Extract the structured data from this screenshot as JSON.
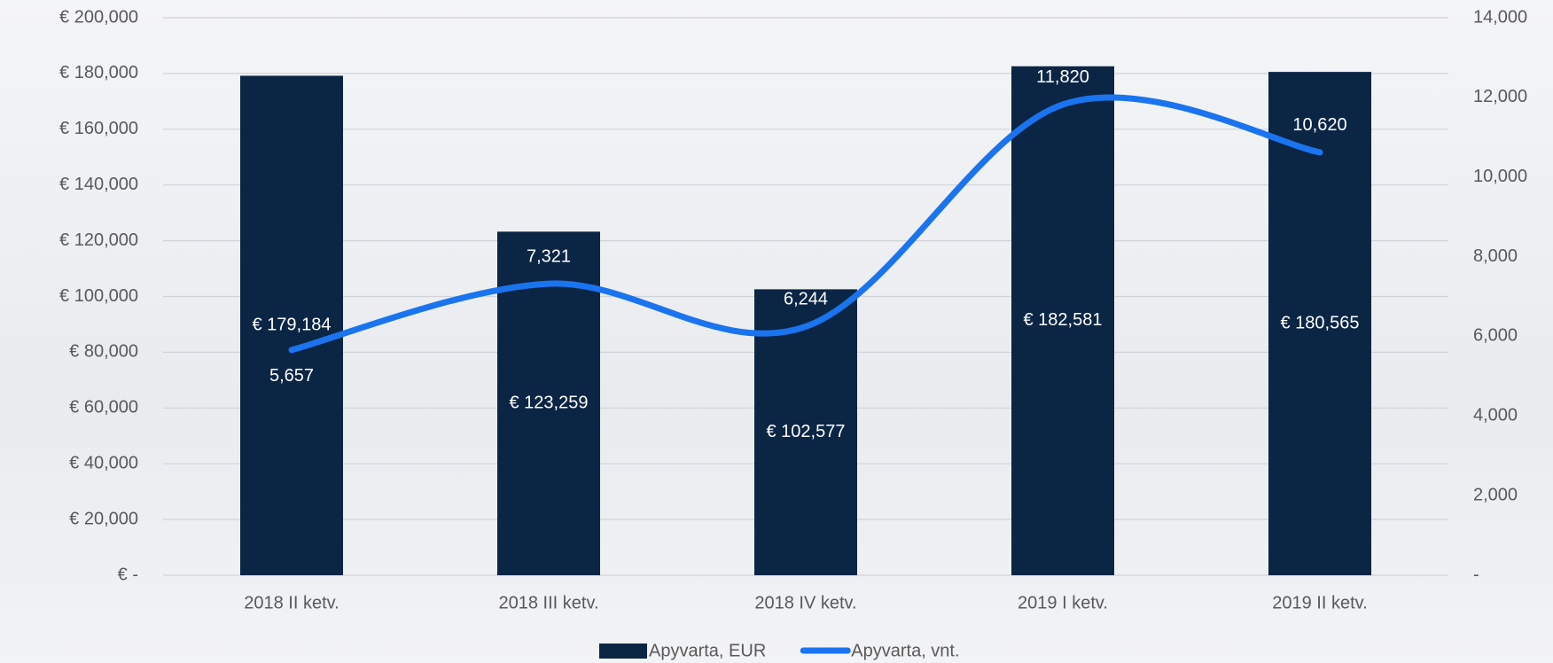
{
  "chart_data": {
    "type": "bar",
    "categories": [
      "2018 II ketv.",
      "2018 III ketv.",
      "2018 IV ketv.",
      "2019 I ketv.",
      "2019 II ketv."
    ],
    "series": [
      {
        "name": "Apyvarta, EUR",
        "type": "bar",
        "color": "#0b2545",
        "values": [
          179184,
          123259,
          102577,
          182581,
          180565
        ],
        "value_labels": [
          "€ 179,184",
          "€ 123,259",
          "€ 102,577",
          "€ 182,581",
          "€ 180,565"
        ]
      },
      {
        "name": "Apyvarta, vnt.",
        "type": "line",
        "axis": "y2",
        "color": "#1a74ef",
        "values": [
          5657,
          7321,
          6244,
          11820,
          10620
        ],
        "value_labels": [
          "5,657",
          "7,321",
          "6,244",
          "11,820",
          "10,620"
        ]
      }
    ],
    "ylim": [
      0,
      200000
    ],
    "yticks": [
      {
        "value": 0,
        "label": "€ -"
      },
      {
        "value": 20000,
        "label": "€ 20,000"
      },
      {
        "value": 40000,
        "label": "€ 40,000"
      },
      {
        "value": 60000,
        "label": "€ 60,000"
      },
      {
        "value": 80000,
        "label": "€ 80,000"
      },
      {
        "value": 100000,
        "label": "€ 100,000"
      },
      {
        "value": 120000,
        "label": "€ 120,000"
      },
      {
        "value": 140000,
        "label": "€ 140,000"
      },
      {
        "value": 160000,
        "label": "€ 160,000"
      },
      {
        "value": 180000,
        "label": "€ 180,000"
      },
      {
        "value": 200000,
        "label": "€ 200,000"
      }
    ],
    "y2lim": [
      0,
      14000
    ],
    "y2ticks": [
      {
        "value": 0,
        "label": "-"
      },
      {
        "value": 2000,
        "label": "2,000"
      },
      {
        "value": 4000,
        "label": "4,000"
      },
      {
        "value": 6000,
        "label": "6,000"
      },
      {
        "value": 8000,
        "label": "8,000"
      },
      {
        "value": 10000,
        "label": "10,000"
      },
      {
        "value": 12000,
        "label": "12,000"
      },
      {
        "value": 14000,
        "label": "14,000"
      }
    ],
    "grid": true
  }
}
